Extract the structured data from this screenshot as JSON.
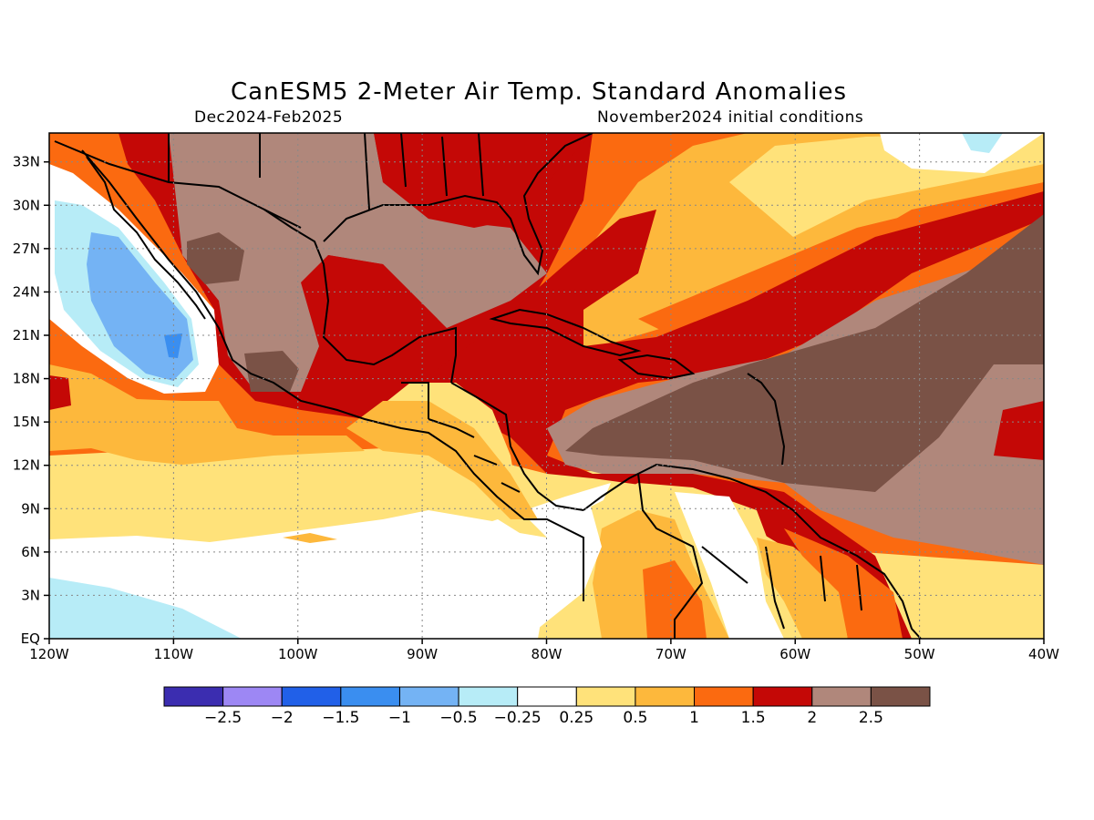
{
  "title": "CanESM5 2-Meter Air Temp. Standard Anomalies",
  "period": "Dec2024-Feb2025",
  "init": "November2024 initial conditions",
  "map": {
    "lat_labels": [
      "EQ",
      "3N",
      "6N",
      "9N",
      "12N",
      "15N",
      "18N",
      "21N",
      "24N",
      "27N",
      "30N",
      "33N"
    ],
    "lon_labels": [
      "120W",
      "110W",
      "100W",
      "90W",
      "80W",
      "70W",
      "60W",
      "50W",
      "40W"
    ],
    "extent": {
      "lon": [
        -120,
        -40
      ],
      "lat": [
        0,
        35
      ]
    }
  },
  "colorbar": {
    "colors": [
      "#3b2db0",
      "#9d87f4",
      "#2160e8",
      "#3a8ef0",
      "#74b3f4",
      "#b7ecf7",
      "#ffffff",
      "#ffe27a",
      "#fdb83c",
      "#fb6a10",
      "#c40806",
      "#b0877b",
      "#7a5246"
    ],
    "labels": [
      "-2.5",
      "-2",
      "-1.5",
      "-1",
      "-0.5",
      "-0.25",
      "0.25",
      "0.5",
      "1",
      "1.5",
      "2",
      "2.5"
    ]
  }
}
